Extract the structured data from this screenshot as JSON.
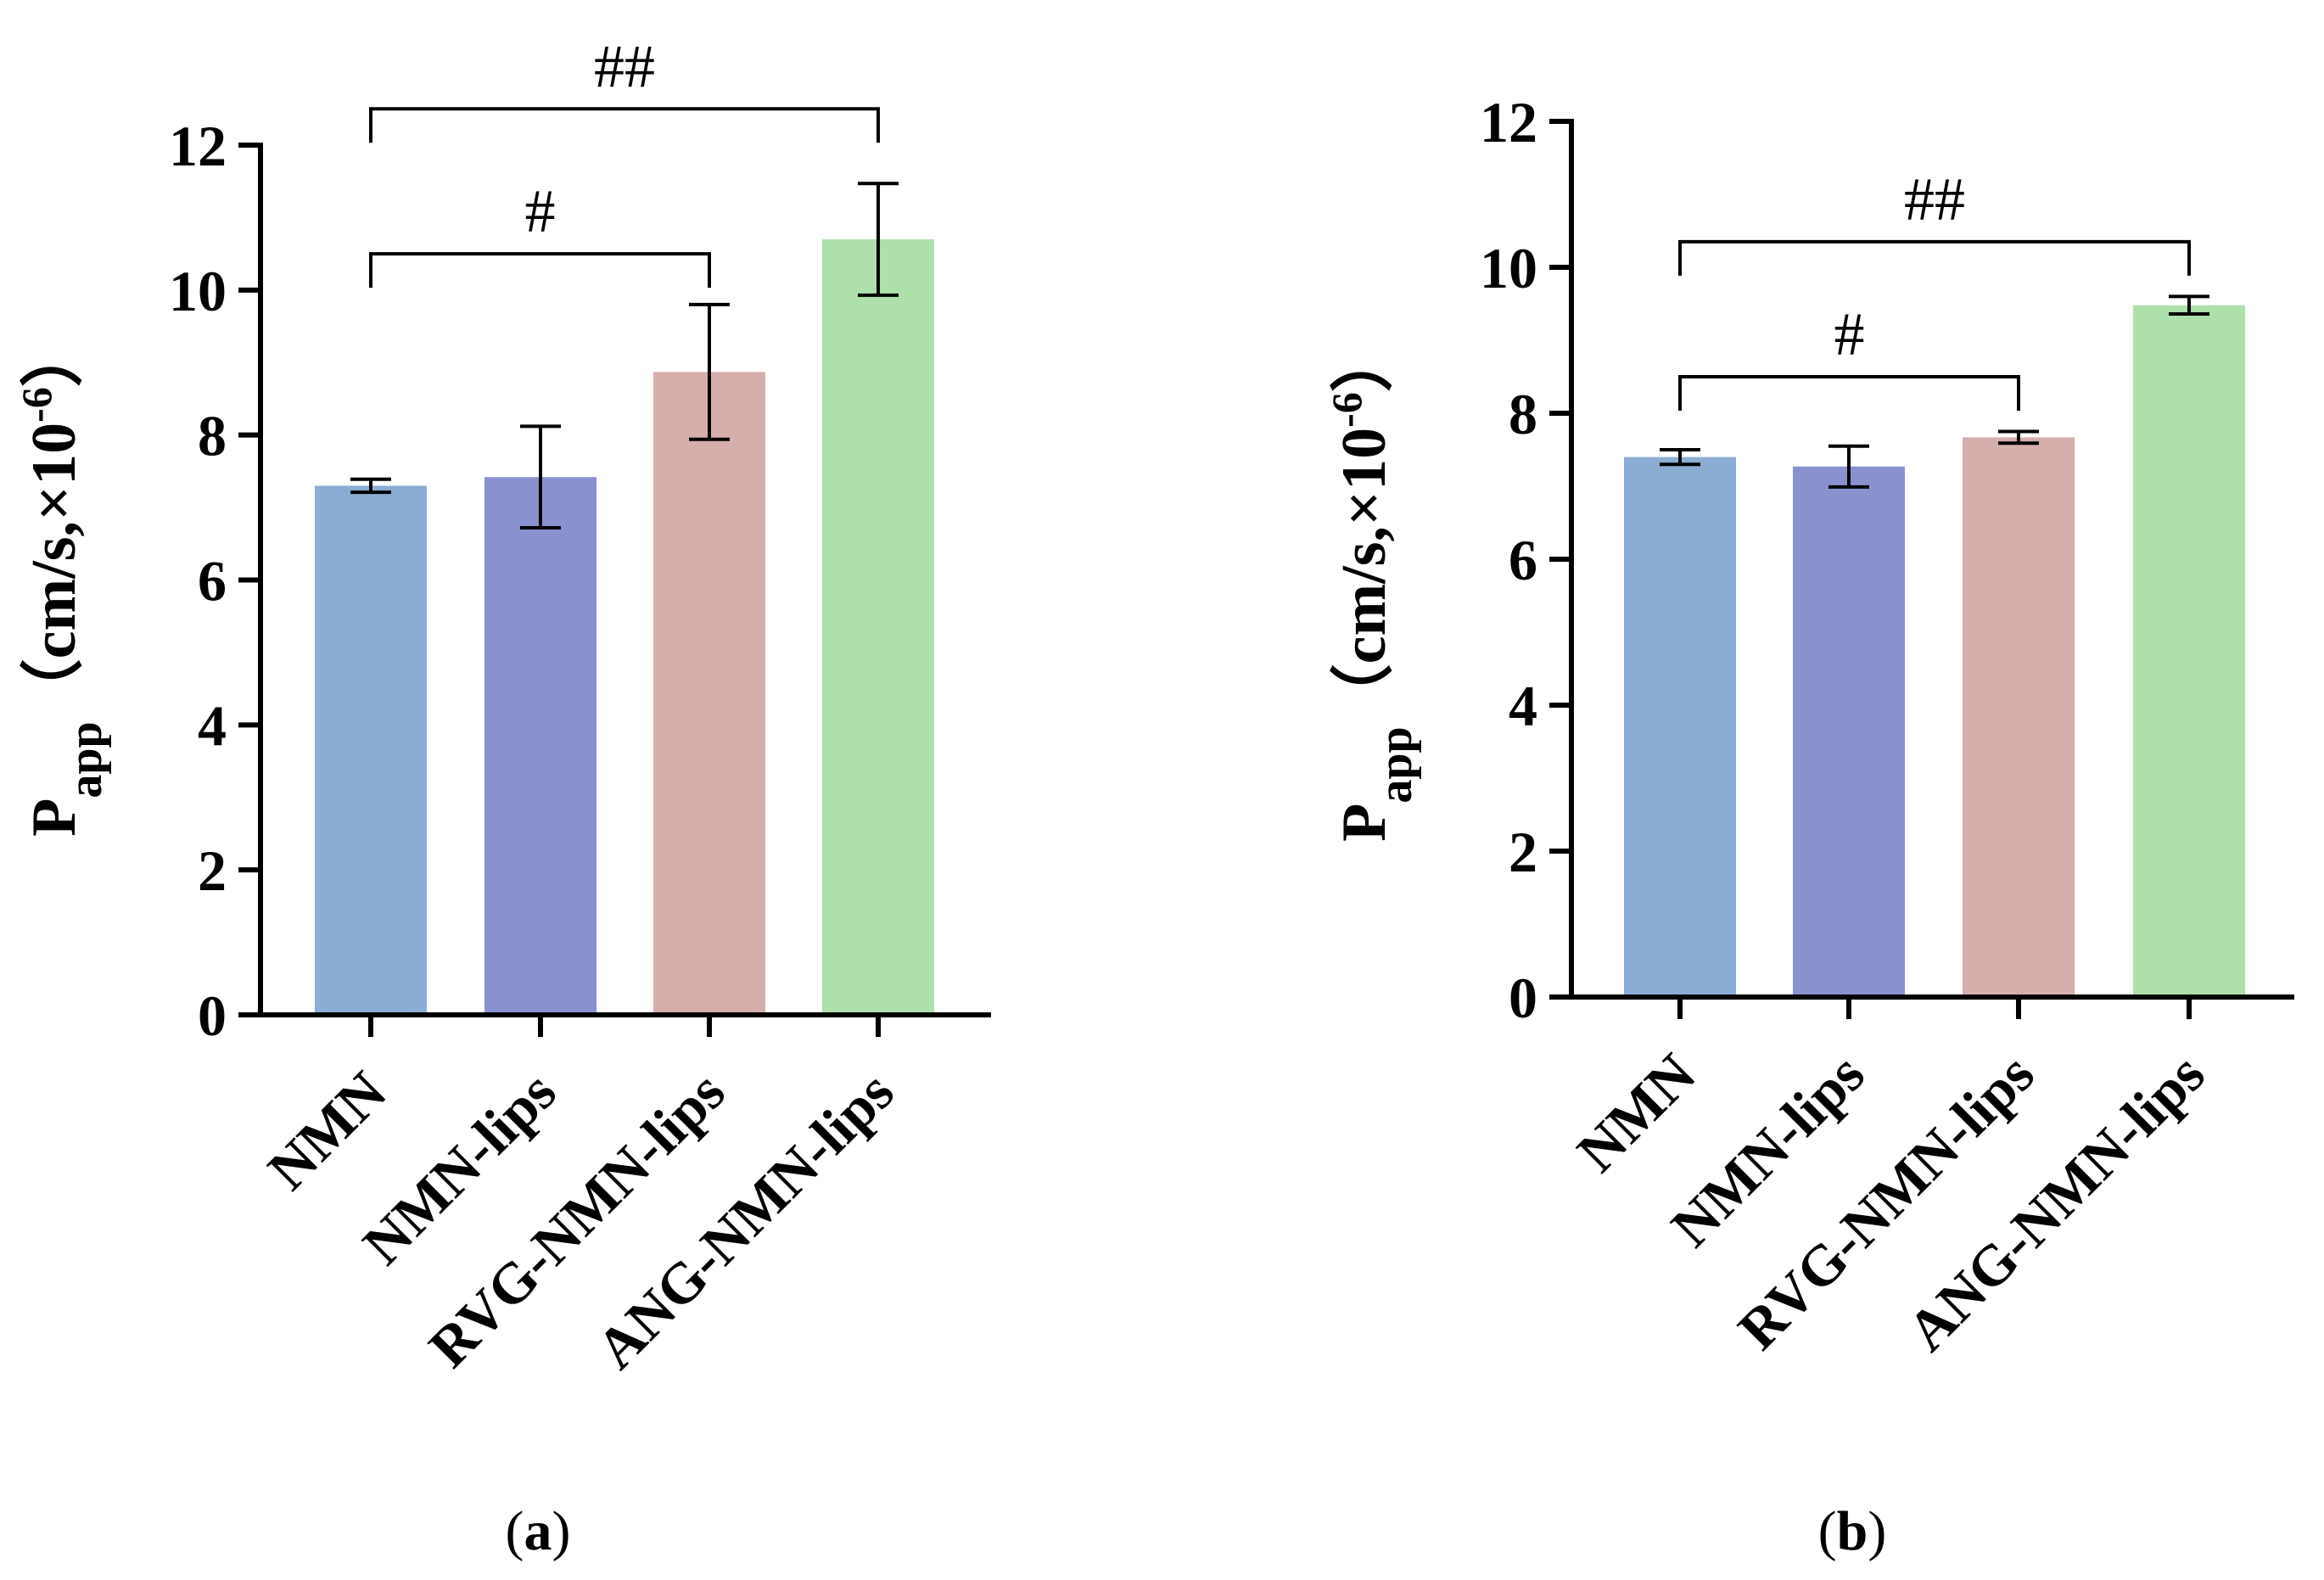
{
  "chart_data": [
    {
      "type": "bar",
      "panel_label": "a",
      "ylabel": "Papp（cm/s,×10-6）",
      "ylabel_parts": {
        "main": "P",
        "sub": "app",
        "paren_open": "（",
        "unit": "cm/s,×10",
        "sup": "-6",
        "paren_close": "）"
      },
      "categories": [
        "NMN",
        "NMN-lips",
        "RVG-NMN-lips",
        "ANG-NMN-lips"
      ],
      "values": [
        7.3,
        7.42,
        8.87,
        10.7
      ],
      "errors": [
        0.09,
        0.7,
        0.93,
        0.77
      ],
      "colors": [
        "#8badd3",
        "#8a91cf",
        "#d6aeab",
        "#ade0ab"
      ],
      "ylim": [
        0,
        12
      ],
      "yticks": [
        "0",
        "2",
        "4",
        "6",
        "8",
        "10",
        "12"
      ],
      "significance": [
        {
          "from": 0,
          "to": 2,
          "label": "#",
          "y": 10.5
        },
        {
          "from": 0,
          "to": 3,
          "label": "##",
          "y": 12.5
        }
      ],
      "grid": false
    },
    {
      "type": "bar",
      "panel_label": "b",
      "ylabel": "Papp（cm/s,×10-6）",
      "ylabel_parts": {
        "main": "P",
        "sub": "app",
        "paren_open": "（",
        "unit": "cm/s,×10",
        "sup": "-6",
        "paren_close": "）"
      },
      "categories": [
        "NMN",
        "NMN-lips",
        "RVG-NMN-lips",
        "ANG-NMN-lips"
      ],
      "values": [
        7.4,
        7.27,
        7.67,
        9.48
      ],
      "errors": [
        0.1,
        0.28,
        0.08,
        0.12
      ],
      "colors": [
        "#8badd3",
        "#8a91cf",
        "#d6aeab",
        "#ade0ab"
      ],
      "ylim": [
        0,
        12
      ],
      "yticks": [
        "0",
        "2",
        "4",
        "6",
        "8",
        "10",
        "12"
      ],
      "significance": [
        {
          "from": 0,
          "to": 2,
          "label": "#",
          "y": 8.5
        },
        {
          "from": 0,
          "to": 3,
          "label": "##",
          "y": 10.35
        }
      ],
      "grid": false
    }
  ]
}
